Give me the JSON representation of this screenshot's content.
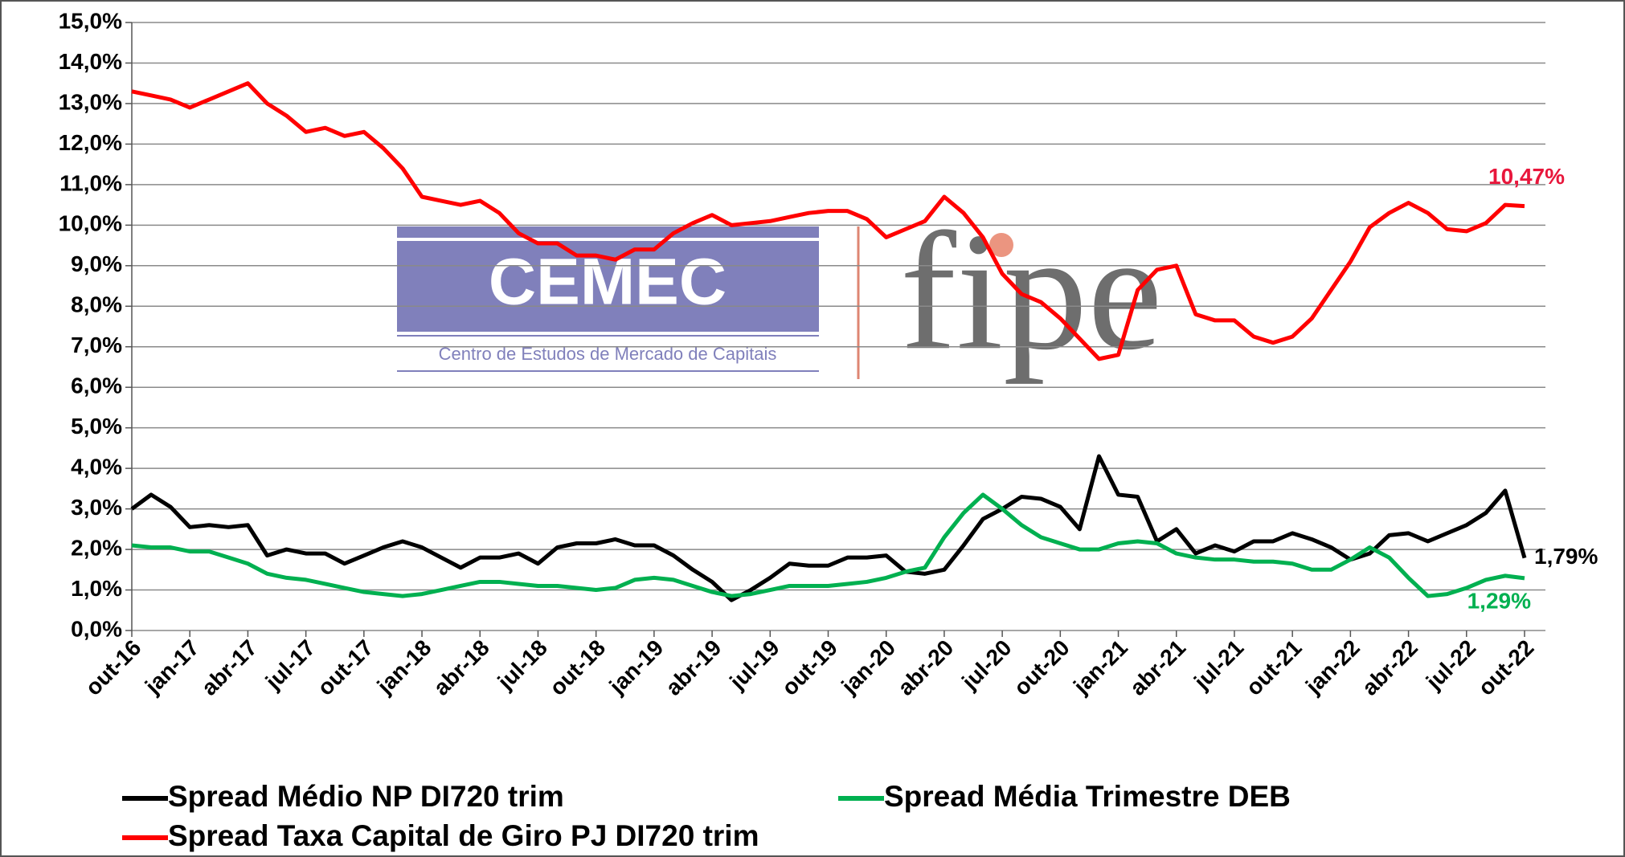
{
  "chart_data": {
    "type": "line",
    "categories": [
      "out-16",
      null,
      null,
      "jan-17",
      null,
      null,
      "abr-17",
      null,
      null,
      "jul-17",
      null,
      null,
      "out-17",
      null,
      null,
      "jan-18",
      null,
      null,
      "abr-18",
      null,
      null,
      "jul-18",
      null,
      null,
      "out-18",
      null,
      null,
      "jan-19",
      null,
      null,
      "abr-19",
      null,
      null,
      "jul-19",
      null,
      null,
      "out-19",
      null,
      null,
      "jan-20",
      null,
      null,
      "abr-20",
      null,
      null,
      "jul-20",
      null,
      null,
      "out-20",
      null,
      null,
      "jan-21",
      null,
      null,
      "abr-21",
      null,
      null,
      "jul-21",
      null,
      null,
      "out-21",
      null,
      null,
      "jan-22",
      null,
      null,
      "abr-22",
      null,
      null,
      "jul-22",
      null,
      null,
      "out-22"
    ],
    "series": [
      {
        "name": "Spread Médio NP DI720 trim",
        "color": "#000000",
        "values": [
          3.0,
          3.35,
          3.05,
          2.55,
          2.6,
          2.55,
          2.6,
          1.85,
          2.0,
          1.9,
          1.9,
          1.65,
          1.85,
          2.05,
          2.2,
          2.05,
          1.8,
          1.55,
          1.8,
          1.8,
          1.9,
          1.65,
          2.05,
          2.15,
          2.15,
          2.25,
          2.1,
          2.1,
          1.85,
          1.5,
          1.2,
          0.75,
          1.0,
          1.3,
          1.65,
          1.6,
          1.6,
          1.8,
          1.8,
          1.85,
          1.45,
          1.4,
          1.5,
          2.1,
          2.75,
          3.0,
          3.3,
          3.25,
          3.05,
          2.5,
          4.3,
          3.35,
          3.3,
          2.2,
          2.5,
          1.9,
          2.1,
          1.95,
          2.2,
          2.2,
          2.4,
          2.25,
          2.05,
          1.75,
          1.9,
          2.35,
          2.4,
          2.2,
          2.4,
          2.6,
          2.9,
          3.45,
          1.79
        ],
        "value_labels": [
          null,
          null,
          null,
          null,
          null,
          null,
          null,
          null,
          null,
          null,
          null,
          null,
          null,
          null,
          null,
          null,
          null,
          null,
          null,
          null,
          null,
          null,
          null,
          null,
          null,
          null,
          null,
          null,
          null,
          null,
          null,
          null,
          null,
          null,
          null,
          null,
          null,
          null,
          null,
          null,
          null,
          null,
          null,
          null,
          null,
          null,
          null,
          null,
          null,
          null,
          null,
          null,
          null,
          null,
          null,
          null,
          null,
          null,
          null,
          null,
          null,
          null,
          null,
          null,
          null,
          null,
          null,
          null,
          null,
          null,
          null,
          null,
          "1,79%"
        ]
      },
      {
        "name": "Spread Média Trimestre DEB",
        "color": "#00b050",
        "values": [
          2.1,
          2.05,
          2.05,
          1.95,
          1.95,
          1.8,
          1.65,
          1.4,
          1.3,
          1.25,
          1.15,
          1.05,
          0.95,
          0.9,
          0.85,
          0.9,
          1.0,
          1.1,
          1.2,
          1.2,
          1.15,
          1.1,
          1.1,
          1.05,
          1.0,
          1.05,
          1.25,
          1.3,
          1.25,
          1.1,
          0.95,
          0.85,
          0.9,
          1.0,
          1.1,
          1.1,
          1.1,
          1.15,
          1.2,
          1.3,
          1.45,
          1.55,
          2.3,
          2.9,
          3.35,
          3.0,
          2.6,
          2.3,
          2.15,
          2.0,
          2.0,
          2.15,
          2.2,
          2.15,
          1.9,
          1.8,
          1.75,
          1.75,
          1.7,
          1.7,
          1.65,
          1.5,
          1.5,
          1.75,
          2.05,
          1.8,
          1.3,
          0.85,
          0.9,
          1.05,
          1.25,
          1.35,
          1.29
        ],
        "value_labels": [
          null,
          null,
          null,
          null,
          null,
          null,
          null,
          null,
          null,
          null,
          null,
          null,
          null,
          null,
          null,
          null,
          null,
          null,
          null,
          null,
          null,
          null,
          null,
          null,
          null,
          null,
          null,
          null,
          null,
          null,
          null,
          null,
          null,
          null,
          null,
          null,
          null,
          null,
          null,
          null,
          null,
          null,
          null,
          null,
          null,
          null,
          null,
          null,
          null,
          null,
          null,
          null,
          null,
          null,
          null,
          null,
          null,
          null,
          null,
          null,
          null,
          null,
          null,
          null,
          null,
          null,
          null,
          null,
          null,
          null,
          null,
          null,
          "1,29%"
        ]
      },
      {
        "name": "Spread Taxa Capital de Giro PJ DI720 trim",
        "color": "#ff0000",
        "values": [
          13.3,
          13.2,
          13.1,
          12.9,
          13.1,
          13.3,
          13.5,
          13.0,
          12.7,
          12.3,
          12.4,
          12.2,
          12.3,
          11.9,
          11.4,
          10.7,
          10.6,
          10.5,
          10.6,
          10.3,
          9.8,
          9.55,
          9.55,
          9.25,
          9.25,
          9.15,
          9.4,
          9.4,
          9.8,
          10.05,
          10.25,
          10.0,
          10.05,
          10.1,
          10.2,
          10.3,
          10.35,
          10.35,
          10.15,
          9.7,
          9.9,
          10.1,
          10.7,
          10.3,
          9.7,
          8.8,
          8.3,
          8.1,
          7.7,
          7.2,
          6.7,
          6.8,
          8.4,
          8.9,
          9.0,
          7.8,
          7.65,
          7.65,
          7.25,
          7.1,
          7.25,
          7.7,
          8.4,
          9.1,
          9.95,
          10.3,
          10.55,
          10.3,
          9.9,
          9.85,
          10.05,
          10.5,
          10.47
        ],
        "value_labels": [
          null,
          null,
          null,
          null,
          null,
          null,
          null,
          null,
          null,
          null,
          null,
          null,
          null,
          null,
          null,
          null,
          null,
          null,
          null,
          null,
          null,
          null,
          null,
          null,
          null,
          null,
          null,
          null,
          null,
          null,
          null,
          null,
          null,
          null,
          null,
          null,
          null,
          null,
          null,
          null,
          null,
          null,
          null,
          null,
          null,
          null,
          null,
          null,
          null,
          null,
          null,
          null,
          null,
          null,
          null,
          null,
          null,
          null,
          null,
          null,
          null,
          null,
          null,
          null,
          null,
          null,
          null,
          null,
          null,
          null,
          null,
          null,
          "10,47%"
        ]
      }
    ],
    "ylim": [
      0,
      15
    ],
    "yticks": [
      {
        "value": 0,
        "label": "0,0%"
      },
      {
        "value": 1,
        "label": "1,0%"
      },
      {
        "value": 2,
        "label": "2,0%"
      },
      {
        "value": 3,
        "label": "3,0%"
      },
      {
        "value": 4,
        "label": "4,0%"
      },
      {
        "value": 5,
        "label": "5,0%"
      },
      {
        "value": 6,
        "label": "6,0%"
      },
      {
        "value": 7,
        "label": "7,0%"
      },
      {
        "value": 8,
        "label": "8,0%"
      },
      {
        "value": 9,
        "label": "9,0%"
      },
      {
        "value": 10,
        "label": "10,0%"
      },
      {
        "value": 11,
        "label": "11,0%"
      },
      {
        "value": 12,
        "label": "12,0%"
      },
      {
        "value": 13,
        "label": "13,0%"
      },
      {
        "value": 14,
        "label": "14,0%"
      },
      {
        "value": 15,
        "label": "15,0%"
      }
    ],
    "grid": true,
    "logo": {
      "left": "CEMEC",
      "left_subtitle": "Centro de Estudos de Mercado de Capitais",
      "right": "fipe"
    }
  }
}
